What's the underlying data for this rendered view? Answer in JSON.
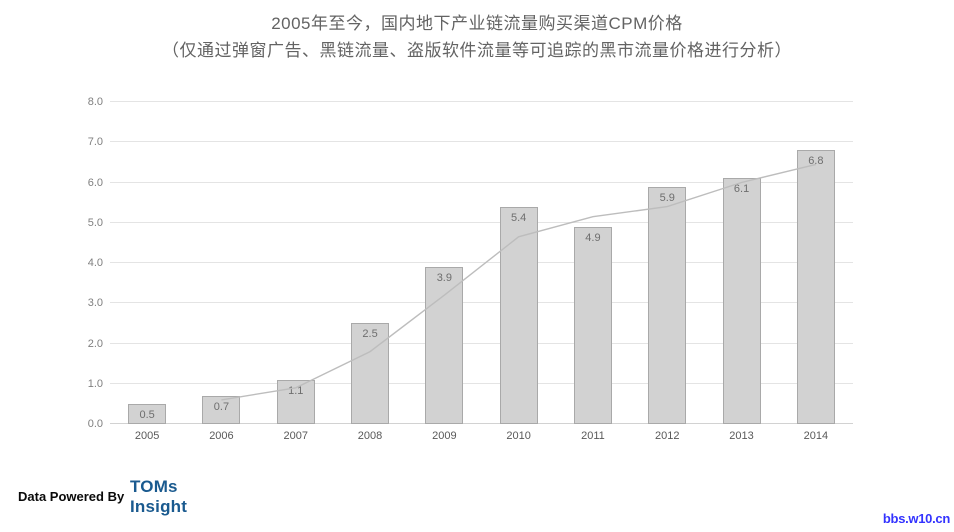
{
  "chart_data": {
    "type": "bar",
    "title": "2005年至今，国内地下产业链流量购买渠道CPM价格",
    "subtitle": "（仅通过弹窗广告、黑链流量、盗版软件流量等可追踪的黑市流量价格进行分析）",
    "categories": [
      "2005",
      "2006",
      "2007",
      "2008",
      "2009",
      "2010",
      "2011",
      "2012",
      "2013",
      "2014"
    ],
    "series": [
      {
        "name": "bar-values",
        "type": "bar",
        "values": [
          0.5,
          0.7,
          1.1,
          2.5,
          3.9,
          5.4,
          4.9,
          5.9,
          6.1,
          6.8
        ]
      },
      {
        "name": "trend-line",
        "type": "line",
        "values": [
          null,
          0.6,
          0.9,
          1.8,
          3.2,
          4.65,
          5.15,
          5.4,
          6.0,
          6.45
        ]
      }
    ],
    "bar_data_labels": [
      "0.5",
      "0.7",
      "1.1",
      "2.5",
      "3.9",
      "5.4",
      "4.9",
      "5.9",
      "6.1",
      "6.8"
    ],
    "ylim": [
      0,
      8
    ],
    "yticks": [
      "0.0",
      "1.0",
      "2.0",
      "3.0",
      "4.0",
      "5.0",
      "6.0",
      "7.0",
      "8.0"
    ],
    "grid": true,
    "legend_position": "none"
  },
  "footer": {
    "credit": "Data Powered By",
    "logo_line1": "TOMs",
    "logo_line2": "Insight"
  },
  "watermark": "bbs.w10.cn",
  "colors": {
    "bar_fill": "#d2d2d2",
    "bar_border": "#a9a9a9",
    "trend_line": "#bdbdbd",
    "gridline": "#e4e4e4",
    "axis_line": "#d2d2d2",
    "title_text": "#636363",
    "y_tick_text": "#7f7f7f",
    "x_tick_text": "#595959",
    "bar_label_text": "#6e6e6e",
    "logo_blue": "#1a5a8f",
    "watermark_blue": "#3333ff"
  }
}
